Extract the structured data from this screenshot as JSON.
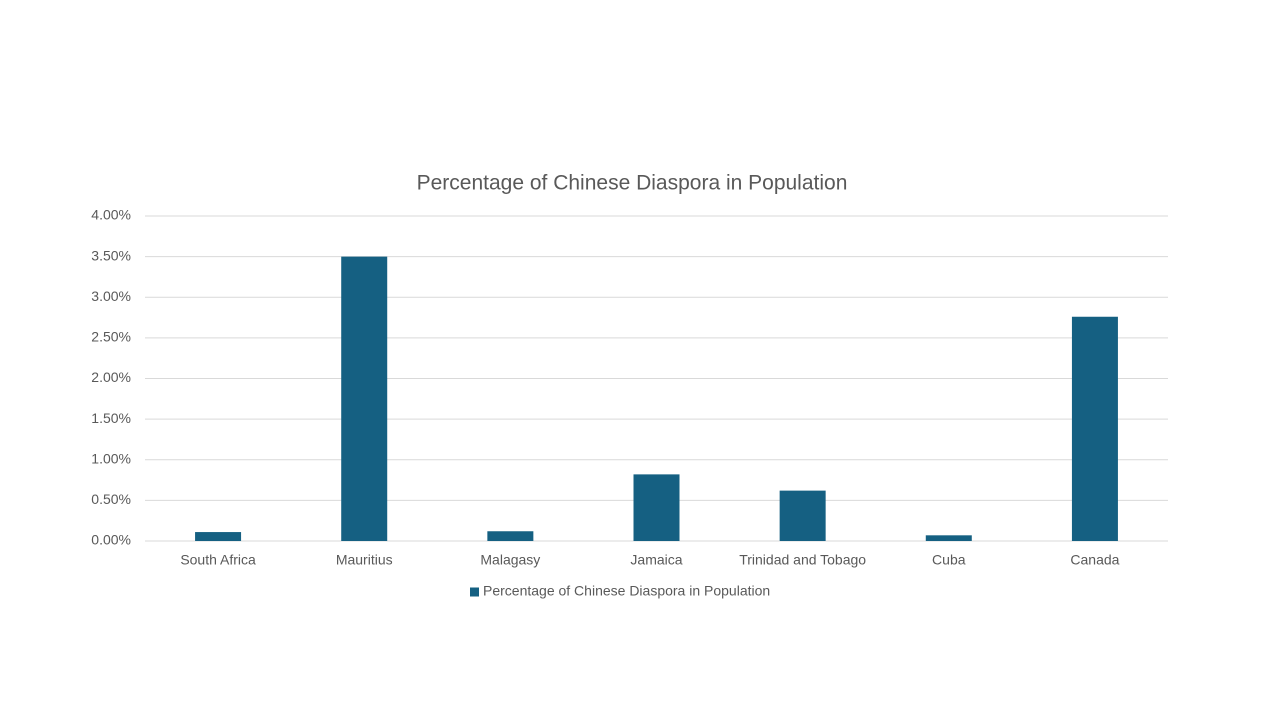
{
  "chart_data": {
    "type": "bar",
    "title": "Percentage of Chinese Diaspora in Population",
    "categories": [
      "South Africa",
      "Mauritius",
      "Malagasy",
      "Jamaica",
      "Trinidad and Tobago",
      "Cuba",
      "Canada"
    ],
    "series": [
      {
        "name": "Percentage of Chinese Diaspora in Population",
        "color": "#156082",
        "values": [
          0.11,
          3.5,
          0.12,
          0.82,
          0.62,
          0.07,
          2.76
        ]
      }
    ],
    "ylim": [
      0,
      4
    ],
    "yticks": [
      {
        "value": 0,
        "label": "0.00%"
      },
      {
        "value": 0.5,
        "label": "0.50%"
      },
      {
        "value": 1,
        "label": "1.00%"
      },
      {
        "value": 1.5,
        "label": "1.50%"
      },
      {
        "value": 2,
        "label": "2.00%"
      },
      {
        "value": 2.5,
        "label": "2.50%"
      },
      {
        "value": 3,
        "label": "3.00%"
      },
      {
        "value": 3.5,
        "label": "3.50%"
      },
      {
        "value": 4,
        "label": "4.00%"
      }
    ],
    "grid": true,
    "legend": "bottom"
  }
}
